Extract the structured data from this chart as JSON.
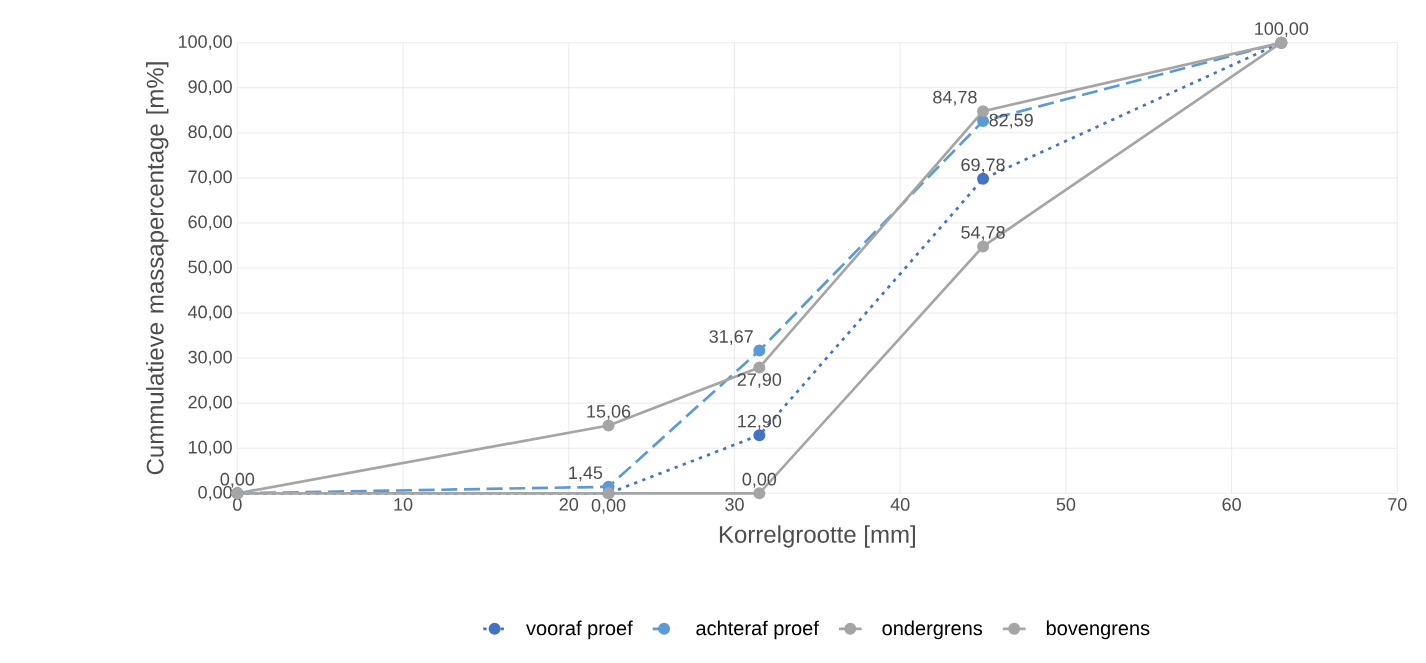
{
  "chart_data": {
    "type": "line",
    "x": [
      0,
      22.4,
      31.5,
      45,
      63
    ],
    "xlabel": "Korrelgrootte [mm]",
    "ylabel": "Cummulatieve massapercentage [m%]",
    "xlim": [
      0,
      70
    ],
    "xticks": [
      0,
      10,
      20,
      30,
      40,
      50,
      60,
      70
    ],
    "ylim": [
      0,
      100
    ],
    "yticks": [
      {
        "value": 0,
        "label": "0,00"
      },
      {
        "value": 10,
        "label": "10,00"
      },
      {
        "value": 20,
        "label": "20,00"
      },
      {
        "value": 30,
        "label": "30,00"
      },
      {
        "value": 40,
        "label": "40,00"
      },
      {
        "value": 50,
        "label": "50,00"
      },
      {
        "value": 60,
        "label": "60,00"
      },
      {
        "value": 70,
        "label": "70,00"
      },
      {
        "value": 80,
        "label": "80,00"
      },
      {
        "value": 90,
        "label": "90,00"
      },
      {
        "value": 100,
        "label": "100,00"
      }
    ],
    "grid": true,
    "legend": "bottom",
    "marker": "circle",
    "series": [
      {
        "name": "vooraf proef",
        "color": "#4472c4",
        "line_style": "dotted",
        "values": [
          0,
          0,
          12.9,
          69.78,
          100
        ],
        "value_labels": [
          "0,00",
          "0,00",
          "12,90",
          "69,78",
          null
        ]
      },
      {
        "name": "achteraf proef",
        "color": "#5b9bd5",
        "line_style": "dashed",
        "values": [
          0,
          1.45,
          31.67,
          82.59,
          100
        ],
        "value_labels": [
          null,
          "1,45",
          "31,67",
          "82,59",
          null
        ]
      },
      {
        "name": "ondergrens",
        "color": "#a5a5a5",
        "line_style": "solid",
        "values": [
          0,
          0,
          0,
          54.78,
          100
        ],
        "value_labels": [
          null,
          null,
          "0,00",
          "54,78",
          null
        ]
      },
      {
        "name": "bovengrens",
        "color": "#a5a5a5",
        "line_style": "solid",
        "values": [
          0,
          15.06,
          27.9,
          84.78,
          100
        ],
        "value_labels": [
          null,
          "15,06",
          "27,90",
          "84,78",
          "100,00"
        ]
      }
    ]
  }
}
